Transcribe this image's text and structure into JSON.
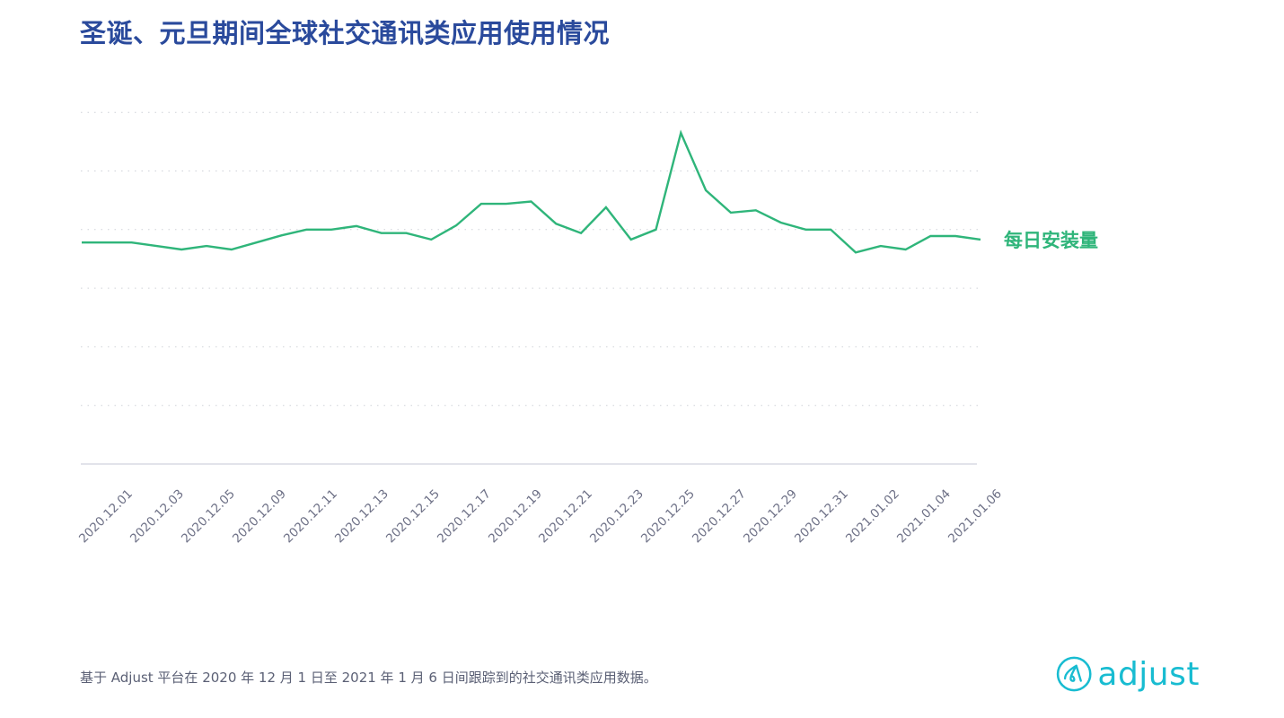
{
  "title": "圣诞、元旦期间全球社交通讯类应用使用情况",
  "series_label": "每日安装量",
  "footnote": "基于 Adjust 平台在 2020 年 12 月 1 日至 2021 年 1 月 6 日间跟踪到的社交通讯类应用数据。",
  "logo": {
    "icon": "adjust-logo-icon",
    "text": "adjust"
  },
  "colors": {
    "title": "#2a4a9c",
    "line": "#2fb57a",
    "grid": "#cfd2d8",
    "axis": "#d8dae3",
    "tick_text": "#6c6f85",
    "footnote": "#5b6075",
    "logo": "#18bcd1"
  },
  "chart_data": {
    "type": "line",
    "title": "圣诞、元旦期间全球社交通讯类应用使用情况",
    "xlabel": "",
    "ylabel": "",
    "y_axis_labels_visible": false,
    "grid": "horizontal dotted",
    "ylim": [
      0,
      6
    ],
    "legend": {
      "position": "right-inline",
      "entries": [
        "每日安装量"
      ]
    },
    "tick_labels": [
      "2020.12.01",
      "2020.12.03",
      "2020.12.05",
      "2020.12.09",
      "2020.12.11",
      "2020.12.13",
      "2020.12.15",
      "2020.12.17",
      "2020.12.19",
      "2020.12.21",
      "2020.12.23",
      "2020.12.25",
      "2020.12.27",
      "2020.12.29",
      "2020.12.31",
      "2021.01.02",
      "2021.01.04",
      "2021.01.06"
    ],
    "x": [
      "2020.12.01",
      "2020.12.02",
      "2020.12.03",
      "2020.12.04",
      "2020.12.05",
      "2020.12.06",
      "2020.12.07",
      "2020.12.08",
      "2020.12.09",
      "2020.12.10",
      "2020.12.11",
      "2020.12.12",
      "2020.12.13",
      "2020.12.14",
      "2020.12.15",
      "2020.12.16",
      "2020.12.17",
      "2020.12.18",
      "2020.12.19",
      "2020.12.20",
      "2020.12.21",
      "2020.12.22",
      "2020.12.23",
      "2020.12.24",
      "2020.12.25",
      "2020.12.26",
      "2020.12.27",
      "2020.12.28",
      "2020.12.29",
      "2020.12.30",
      "2020.12.31",
      "2021.01.01",
      "2021.01.02",
      "2021.01.03",
      "2021.01.04",
      "2021.01.05",
      "2021.01.06"
    ],
    "series": [
      {
        "name": "每日安装量",
        "values": [
          3.78,
          3.78,
          3.78,
          3.72,
          3.66,
          3.72,
          3.66,
          3.78,
          3.9,
          4.0,
          4.0,
          4.06,
          3.94,
          3.94,
          3.83,
          4.07,
          4.44,
          4.44,
          4.48,
          4.1,
          3.94,
          4.38,
          3.83,
          4.0,
          5.65,
          4.67,
          4.29,
          4.33,
          4.12,
          4.0,
          4.0,
          3.61,
          3.72,
          3.66,
          3.89,
          3.89,
          3.83
        ]
      }
    ]
  }
}
